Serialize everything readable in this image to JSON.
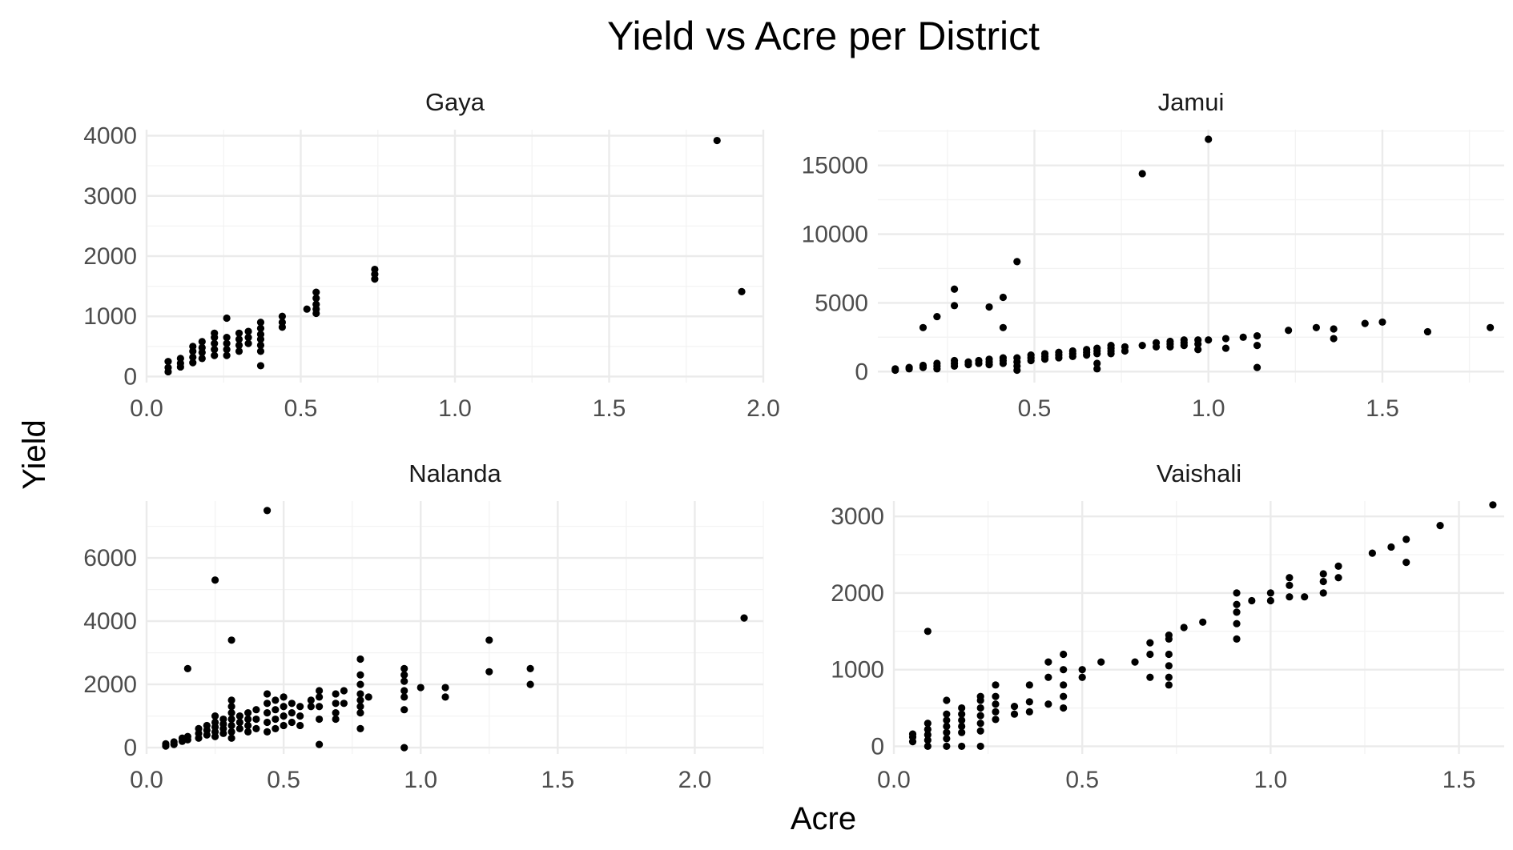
{
  "chart": {
    "title": "Yield vs Acre per District",
    "xlabel": "Acre",
    "ylabel": "Yield"
  },
  "chart_data": [
    {
      "type": "scatter",
      "panel": "Gaya",
      "xlim": [
        0.0,
        2.0
      ],
      "ylim": [
        -100,
        4100
      ],
      "x_ticks": [
        "0.0",
        "0.5",
        "1.0",
        "1.5",
        "2.0"
      ],
      "x_tick_values": [
        0.0,
        0.5,
        1.0,
        1.5,
        2.0
      ],
      "y_ticks": [
        "0",
        "1000",
        "2000",
        "3000",
        "4000"
      ],
      "y_tick_values": [
        0,
        1000,
        2000,
        3000,
        4000
      ],
      "points": [
        [
          0.07,
          80
        ],
        [
          0.07,
          150
        ],
        [
          0.07,
          250
        ],
        [
          0.11,
          160
        ],
        [
          0.11,
          220
        ],
        [
          0.11,
          300
        ],
        [
          0.15,
          230
        ],
        [
          0.15,
          320
        ],
        [
          0.15,
          420
        ],
        [
          0.15,
          500
        ],
        [
          0.18,
          300
        ],
        [
          0.18,
          400
        ],
        [
          0.18,
          480
        ],
        [
          0.18,
          580
        ],
        [
          0.22,
          350
        ],
        [
          0.22,
          450
        ],
        [
          0.22,
          550
        ],
        [
          0.22,
          650
        ],
        [
          0.22,
          720
        ],
        [
          0.26,
          350
        ],
        [
          0.26,
          450
        ],
        [
          0.26,
          550
        ],
        [
          0.26,
          650
        ],
        [
          0.26,
          970
        ],
        [
          0.3,
          420
        ],
        [
          0.3,
          520
        ],
        [
          0.3,
          620
        ],
        [
          0.3,
          720
        ],
        [
          0.33,
          550
        ],
        [
          0.33,
          650
        ],
        [
          0.33,
          750
        ],
        [
          0.37,
          180
        ],
        [
          0.37,
          420
        ],
        [
          0.37,
          520
        ],
        [
          0.37,
          620
        ],
        [
          0.37,
          700
        ],
        [
          0.37,
          800
        ],
        [
          0.37,
          900
        ],
        [
          0.44,
          820
        ],
        [
          0.44,
          900
        ],
        [
          0.44,
          1000
        ],
        [
          0.52,
          1120
        ],
        [
          0.55,
          1050
        ],
        [
          0.55,
          1120
        ],
        [
          0.55,
          1200
        ],
        [
          0.55,
          1300
        ],
        [
          0.55,
          1400
        ],
        [
          0.74,
          1620
        ],
        [
          0.74,
          1700
        ],
        [
          0.74,
          1780
        ],
        [
          1.85,
          3920
        ],
        [
          1.93,
          1410
        ]
      ]
    },
    {
      "type": "scatter",
      "panel": "Jamui",
      "xlim": [
        0.05,
        1.85
      ],
      "ylim": [
        -800,
        17600
      ],
      "x_ticks": [
        "0.5",
        "1.0",
        "1.5"
      ],
      "x_tick_values": [
        0.5,
        1.0,
        1.5
      ],
      "y_ticks": [
        "0",
        "5000",
        "10000",
        "15000"
      ],
      "y_tick_values": [
        0,
        5000,
        10000,
        15000
      ],
      "points": [
        [
          0.1,
          100
        ],
        [
          0.1,
          200
        ],
        [
          0.14,
          200
        ],
        [
          0.14,
          300
        ],
        [
          0.18,
          300
        ],
        [
          0.18,
          450
        ],
        [
          0.18,
          3200
        ],
        [
          0.22,
          200
        ],
        [
          0.22,
          400
        ],
        [
          0.22,
          600
        ],
        [
          0.22,
          4000
        ],
        [
          0.27,
          400
        ],
        [
          0.27,
          600
        ],
        [
          0.27,
          800
        ],
        [
          0.27,
          4800
        ],
        [
          0.27,
          6000
        ],
        [
          0.31,
          500
        ],
        [
          0.31,
          700
        ],
        [
          0.34,
          600
        ],
        [
          0.34,
          800
        ],
        [
          0.37,
          500
        ],
        [
          0.37,
          700
        ],
        [
          0.37,
          900
        ],
        [
          0.37,
          4700
        ],
        [
          0.41,
          600
        ],
        [
          0.41,
          800
        ],
        [
          0.41,
          1000
        ],
        [
          0.41,
          3200
        ],
        [
          0.41,
          5400
        ],
        [
          0.45,
          100
        ],
        [
          0.45,
          400
        ],
        [
          0.45,
          700
        ],
        [
          0.45,
          1000
        ],
        [
          0.45,
          8000
        ],
        [
          0.49,
          800
        ],
        [
          0.49,
          1000
        ],
        [
          0.49,
          1200
        ],
        [
          0.53,
          900
        ],
        [
          0.53,
          1100
        ],
        [
          0.53,
          1300
        ],
        [
          0.57,
          1000
        ],
        [
          0.57,
          1200
        ],
        [
          0.57,
          1400
        ],
        [
          0.61,
          1100
        ],
        [
          0.61,
          1300
        ],
        [
          0.61,
          1500
        ],
        [
          0.65,
          1200
        ],
        [
          0.65,
          1400
        ],
        [
          0.65,
          1600
        ],
        [
          0.68,
          200
        ],
        [
          0.68,
          600
        ],
        [
          0.68,
          1300
        ],
        [
          0.68,
          1500
        ],
        [
          0.68,
          1700
        ],
        [
          0.72,
          1300
        ],
        [
          0.72,
          1500
        ],
        [
          0.72,
          1700
        ],
        [
          0.72,
          1900
        ],
        [
          0.76,
          1500
        ],
        [
          0.76,
          1800
        ],
        [
          0.81,
          1900
        ],
        [
          0.81,
          14400
        ],
        [
          0.85,
          1800
        ],
        [
          0.85,
          2100
        ],
        [
          0.89,
          1800
        ],
        [
          0.89,
          2000
        ],
        [
          0.89,
          2200
        ],
        [
          0.93,
          1900
        ],
        [
          0.93,
          2100
        ],
        [
          0.93,
          2300
        ],
        [
          0.97,
          1600
        ],
        [
          0.97,
          2000
        ],
        [
          0.97,
          2300
        ],
        [
          1.0,
          2300
        ],
        [
          1.0,
          16900
        ],
        [
          1.05,
          1700
        ],
        [
          1.05,
          2400
        ],
        [
          1.1,
          2500
        ],
        [
          1.14,
          300
        ],
        [
          1.14,
          1900
        ],
        [
          1.14,
          2600
        ],
        [
          1.23,
          3000
        ],
        [
          1.31,
          3200
        ],
        [
          1.36,
          2400
        ],
        [
          1.36,
          3100
        ],
        [
          1.45,
          3500
        ],
        [
          1.5,
          3600
        ],
        [
          1.63,
          2900
        ],
        [
          1.81,
          3200
        ]
      ]
    },
    {
      "type": "scatter",
      "panel": "Nalanda",
      "xlim": [
        0.0,
        2.25
      ],
      "ylim": [
        -200,
        7800
      ],
      "x_ticks": [
        "0.0",
        "0.5",
        "1.0",
        "1.5",
        "2.0"
      ],
      "x_tick_values": [
        0.0,
        0.5,
        1.0,
        1.5,
        2.0
      ],
      "y_ticks": [
        "0",
        "2000",
        "4000",
        "6000"
      ],
      "y_tick_values": [
        0,
        2000,
        4000,
        6000
      ],
      "points": [
        [
          0.07,
          50
        ],
        [
          0.07,
          120
        ],
        [
          0.1,
          100
        ],
        [
          0.1,
          180
        ],
        [
          0.13,
          200
        ],
        [
          0.13,
          300
        ],
        [
          0.15,
          250
        ],
        [
          0.15,
          350
        ],
        [
          0.15,
          2500
        ],
        [
          0.19,
          300
        ],
        [
          0.19,
          450
        ],
        [
          0.19,
          600
        ],
        [
          0.22,
          400
        ],
        [
          0.22,
          550
        ],
        [
          0.22,
          700
        ],
        [
          0.25,
          350
        ],
        [
          0.25,
          500
        ],
        [
          0.25,
          650
        ],
        [
          0.25,
          800
        ],
        [
          0.25,
          1000
        ],
        [
          0.25,
          5300
        ],
        [
          0.28,
          450
        ],
        [
          0.28,
          600
        ],
        [
          0.28,
          750
        ],
        [
          0.28,
          900
        ],
        [
          0.31,
          300
        ],
        [
          0.31,
          500
        ],
        [
          0.31,
          700
        ],
        [
          0.31,
          900
        ],
        [
          0.31,
          1100
        ],
        [
          0.31,
          1300
        ],
        [
          0.31,
          1500
        ],
        [
          0.31,
          3400
        ],
        [
          0.34,
          600
        ],
        [
          0.34,
          800
        ],
        [
          0.34,
          1000
        ],
        [
          0.37,
          500
        ],
        [
          0.37,
          700
        ],
        [
          0.37,
          900
        ],
        [
          0.37,
          1100
        ],
        [
          0.4,
          600
        ],
        [
          0.4,
          900
        ],
        [
          0.4,
          1200
        ],
        [
          0.44,
          500
        ],
        [
          0.44,
          800
        ],
        [
          0.44,
          1100
        ],
        [
          0.44,
          1400
        ],
        [
          0.44,
          1700
        ],
        [
          0.44,
          7500
        ],
        [
          0.47,
          600
        ],
        [
          0.47,
          900
        ],
        [
          0.47,
          1200
        ],
        [
          0.47,
          1500
        ],
        [
          0.5,
          700
        ],
        [
          0.5,
          1000
        ],
        [
          0.5,
          1300
        ],
        [
          0.5,
          1600
        ],
        [
          0.53,
          800
        ],
        [
          0.53,
          1100
        ],
        [
          0.53,
          1400
        ],
        [
          0.56,
          700
        ],
        [
          0.56,
          1000
        ],
        [
          0.56,
          1300
        ],
        [
          0.6,
          1300
        ],
        [
          0.6,
          1500
        ],
        [
          0.63,
          100
        ],
        [
          0.63,
          900
        ],
        [
          0.63,
          1300
        ],
        [
          0.63,
          1600
        ],
        [
          0.63,
          1800
        ],
        [
          0.69,
          900
        ],
        [
          0.69,
          1100
        ],
        [
          0.69,
          1400
        ],
        [
          0.69,
          1700
        ],
        [
          0.72,
          1400
        ],
        [
          0.72,
          1800
        ],
        [
          0.78,
          600
        ],
        [
          0.78,
          1100
        ],
        [
          0.78,
          1300
        ],
        [
          0.78,
          1500
        ],
        [
          0.78,
          1700
        ],
        [
          0.78,
          2000
        ],
        [
          0.78,
          2300
        ],
        [
          0.78,
          2800
        ],
        [
          0.81,
          1600
        ],
        [
          0.94,
          0
        ],
        [
          0.94,
          1200
        ],
        [
          0.94,
          1600
        ],
        [
          0.94,
          1800
        ],
        [
          0.94,
          2100
        ],
        [
          0.94,
          2300
        ],
        [
          0.94,
          2500
        ],
        [
          1.0,
          1900
        ],
        [
          1.09,
          1600
        ],
        [
          1.09,
          1900
        ],
        [
          1.25,
          2400
        ],
        [
          1.25,
          3400
        ],
        [
          1.4,
          2000
        ],
        [
          1.4,
          2500
        ],
        [
          2.18,
          4100
        ]
      ]
    },
    {
      "type": "scatter",
      "panel": "Vaishali",
      "xlim": [
        0.0,
        1.62
      ],
      "ylim": [
        -100,
        3200
      ],
      "x_ticks": [
        "0.0",
        "0.5",
        "1.0",
        "1.5"
      ],
      "x_tick_values": [
        0.0,
        0.5,
        1.0,
        1.5
      ],
      "y_ticks": [
        "0",
        "1000",
        "2000",
        "3000"
      ],
      "y_tick_values": [
        0,
        1000,
        2000,
        3000
      ],
      "points": [
        [
          0.05,
          60
        ],
        [
          0.05,
          120
        ],
        [
          0.05,
          160
        ],
        [
          0.09,
          0
        ],
        [
          0.09,
          80
        ],
        [
          0.09,
          150
        ],
        [
          0.09,
          220
        ],
        [
          0.09,
          300
        ],
        [
          0.09,
          1500
        ],
        [
          0.14,
          0
        ],
        [
          0.14,
          100
        ],
        [
          0.14,
          180
        ],
        [
          0.14,
          260
        ],
        [
          0.14,
          340
        ],
        [
          0.14,
          420
        ],
        [
          0.14,
          600
        ],
        [
          0.18,
          0
        ],
        [
          0.18,
          180
        ],
        [
          0.18,
          260
        ],
        [
          0.18,
          340
        ],
        [
          0.18,
          420
        ],
        [
          0.18,
          500
        ],
        [
          0.23,
          0
        ],
        [
          0.23,
          200
        ],
        [
          0.23,
          300
        ],
        [
          0.23,
          400
        ],
        [
          0.23,
          500
        ],
        [
          0.23,
          600
        ],
        [
          0.23,
          650
        ],
        [
          0.27,
          350
        ],
        [
          0.27,
          450
        ],
        [
          0.27,
          550
        ],
        [
          0.27,
          650
        ],
        [
          0.27,
          800
        ],
        [
          0.32,
          420
        ],
        [
          0.32,
          520
        ],
        [
          0.36,
          450
        ],
        [
          0.36,
          580
        ],
        [
          0.36,
          800
        ],
        [
          0.41,
          550
        ],
        [
          0.41,
          900
        ],
        [
          0.41,
          1100
        ],
        [
          0.45,
          500
        ],
        [
          0.45,
          650
        ],
        [
          0.45,
          800
        ],
        [
          0.45,
          1000
        ],
        [
          0.45,
          1200
        ],
        [
          0.5,
          900
        ],
        [
          0.5,
          1000
        ],
        [
          0.55,
          1100
        ],
        [
          0.64,
          1100
        ],
        [
          0.68,
          900
        ],
        [
          0.68,
          1200
        ],
        [
          0.68,
          1350
        ],
        [
          0.73,
          800
        ],
        [
          0.73,
          900
        ],
        [
          0.73,
          1050
        ],
        [
          0.73,
          1200
        ],
        [
          0.73,
          1400
        ],
        [
          0.73,
          1450
        ],
        [
          0.77,
          1550
        ],
        [
          0.82,
          1620
        ],
        [
          0.91,
          1400
        ],
        [
          0.91,
          1600
        ],
        [
          0.91,
          1750
        ],
        [
          0.91,
          1850
        ],
        [
          0.91,
          2000
        ],
        [
          0.95,
          1900
        ],
        [
          1.0,
          1900
        ],
        [
          1.0,
          2000
        ],
        [
          1.05,
          1950
        ],
        [
          1.05,
          2100
        ],
        [
          1.05,
          2200
        ],
        [
          1.09,
          1950
        ],
        [
          1.14,
          2000
        ],
        [
          1.14,
          2150
        ],
        [
          1.14,
          2250
        ],
        [
          1.18,
          2200
        ],
        [
          1.18,
          2350
        ],
        [
          1.27,
          2520
        ],
        [
          1.32,
          2600
        ],
        [
          1.36,
          2400
        ],
        [
          1.36,
          2700
        ],
        [
          1.45,
          2880
        ],
        [
          1.59,
          3150
        ]
      ]
    }
  ]
}
